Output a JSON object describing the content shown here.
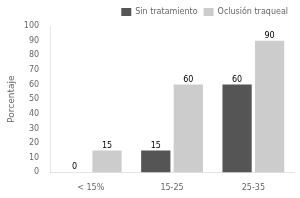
{
  "chart_data": {
    "type": "bar",
    "categories": [
      "< 15%",
      "15-25",
      "25-35"
    ],
    "series": [
      {
        "name": "Sin tratamiento",
        "color": "#555555",
        "values": [
          0,
          15,
          60
        ]
      },
      {
        "name": "Oclusión traqueal",
        "color": "#cccccc",
        "values": [
          15,
          60,
          90
        ]
      }
    ],
    "ylabel": "Porcentaje",
    "ylim": [
      0,
      100
    ],
    "yticks": [
      0,
      10,
      20,
      30,
      40,
      50,
      60,
      70,
      80,
      90,
      100
    ],
    "grid": false,
    "legend": "upper right",
    "data_labels": true
  }
}
